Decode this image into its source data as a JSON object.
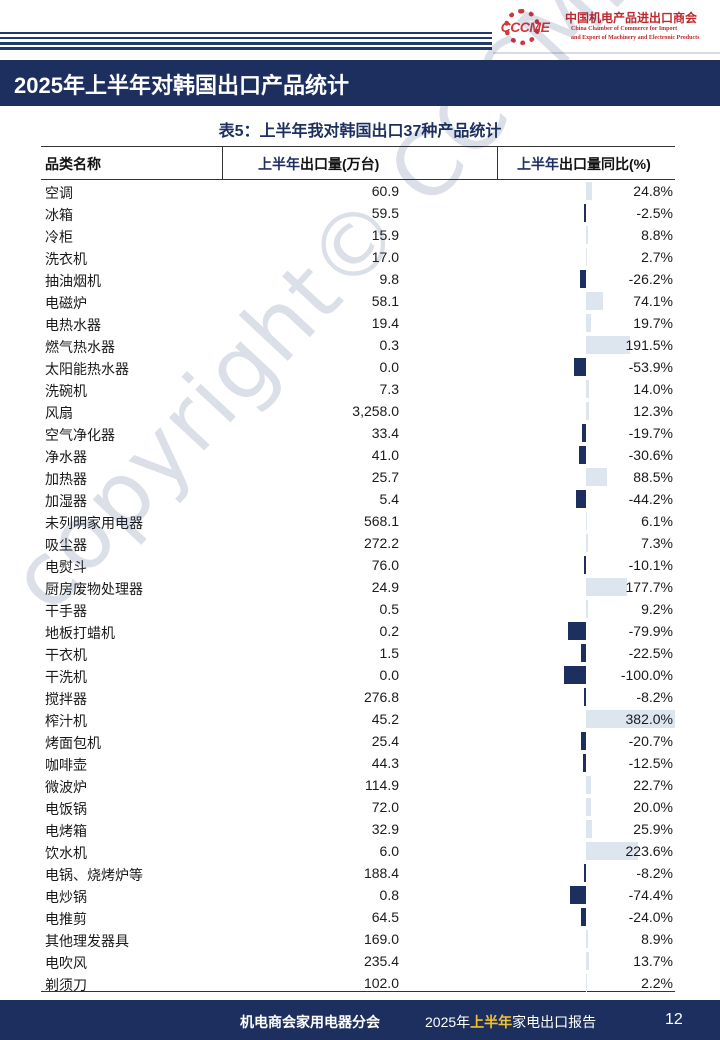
{
  "header": {
    "logo_mark": "CCCME",
    "org_cn": "中国机电产品进出口商会",
    "org_en_line1": "China Chamber of Commerce for Import",
    "org_en_line2": "and Export of Machinery and Electronic Products",
    "banner_title": "2025年上半年对韩国出口产品统计"
  },
  "table": {
    "title": "表5：上半年我对韩国出口37种产品统计",
    "col_name": "品类名称",
    "col_qty_highlight": "上半年",
    "col_qty_rest": "出口量(万台)",
    "col_yoy_highlight": "上半年",
    "col_yoy_rest": "出口量同比(%)",
    "colors": {
      "positive_bar": "#dde6ef",
      "negative_bar": "#1c2f5e"
    },
    "rows": [
      {
        "name": "空调",
        "qty": "60.9",
        "yoy": "24.8%",
        "yoy_value": 24.8
      },
      {
        "name": "冰箱",
        "qty": "59.5",
        "yoy": "-2.5%",
        "yoy_value": -2.5
      },
      {
        "name": "冷柜",
        "qty": "15.9",
        "yoy": "8.8%",
        "yoy_value": 8.8
      },
      {
        "name": "洗衣机",
        "qty": "17.0",
        "yoy": "2.7%",
        "yoy_value": 2.7
      },
      {
        "name": "抽油烟机",
        "qty": "9.8",
        "yoy": "-26.2%",
        "yoy_value": -26.2
      },
      {
        "name": "电磁炉",
        "qty": "58.1",
        "yoy": "74.1%",
        "yoy_value": 74.1
      },
      {
        "name": "电热水器",
        "qty": "19.4",
        "yoy": "19.7%",
        "yoy_value": 19.7
      },
      {
        "name": "燃气热水器",
        "qty": "0.3",
        "yoy": "191.5%",
        "yoy_value": 191.5
      },
      {
        "name": "太阳能热水器",
        "qty": "0.0",
        "yoy": "-53.9%",
        "yoy_value": -53.9
      },
      {
        "name": "洗碗机",
        "qty": "7.3",
        "yoy": "14.0%",
        "yoy_value": 14.0
      },
      {
        "name": "风扇",
        "qty": "3,258.0",
        "yoy": "12.3%",
        "yoy_value": 12.3
      },
      {
        "name": "空气净化器",
        "qty": "33.4",
        "yoy": "-19.7%",
        "yoy_value": -19.7
      },
      {
        "name": "净水器",
        "qty": "41.0",
        "yoy": "-30.6%",
        "yoy_value": -30.6
      },
      {
        "name": "加热器",
        "qty": "25.7",
        "yoy": "88.5%",
        "yoy_value": 88.5
      },
      {
        "name": "加湿器",
        "qty": "5.4",
        "yoy": "-44.2%",
        "yoy_value": -44.2
      },
      {
        "name": "未列明家用电器",
        "qty": "568.1",
        "yoy": "6.1%",
        "yoy_value": 6.1
      },
      {
        "name": "吸尘器",
        "qty": "272.2",
        "yoy": "7.3%",
        "yoy_value": 7.3
      },
      {
        "name": "电熨斗",
        "qty": "76.0",
        "yoy": "-10.1%",
        "yoy_value": -10.1
      },
      {
        "name": "厨房废物处理器",
        "qty": "24.9",
        "yoy": "177.7%",
        "yoy_value": 177.7
      },
      {
        "name": "干手器",
        "qty": "0.5",
        "yoy": "9.2%",
        "yoy_value": 9.2
      },
      {
        "name": "地板打蜡机",
        "qty": "0.2",
        "yoy": "-79.9%",
        "yoy_value": -79.9
      },
      {
        "name": "干衣机",
        "qty": "1.5",
        "yoy": "-22.5%",
        "yoy_value": -22.5
      },
      {
        "name": "干洗机",
        "qty": "0.0",
        "yoy": "-100.0%",
        "yoy_value": -100.0
      },
      {
        "name": "搅拌器",
        "qty": "276.8",
        "yoy": "-8.2%",
        "yoy_value": -8.2
      },
      {
        "name": "榨汁机",
        "qty": "45.2",
        "yoy": "382.0%",
        "yoy_value": 382.0
      },
      {
        "name": "烤面包机",
        "qty": "25.4",
        "yoy": "-20.7%",
        "yoy_value": -20.7
      },
      {
        "name": "咖啡壶",
        "qty": "44.3",
        "yoy": "-12.5%",
        "yoy_value": -12.5
      },
      {
        "name": "微波炉",
        "qty": "114.9",
        "yoy": "22.7%",
        "yoy_value": 22.7
      },
      {
        "name": "电饭锅",
        "qty": "72.0",
        "yoy": "20.0%",
        "yoy_value": 20.0
      },
      {
        "name": "电烤箱",
        "qty": "32.9",
        "yoy": "25.9%",
        "yoy_value": 25.9
      },
      {
        "name": "饮水机",
        "qty": "6.0",
        "yoy": "223.6%",
        "yoy_value": 223.6
      },
      {
        "name": "电锅、烧烤炉等",
        "qty": "188.4",
        "yoy": "-8.2%",
        "yoy_value": -8.2
      },
      {
        "name": "电炒锅",
        "qty": "0.8",
        "yoy": "-74.4%",
        "yoy_value": -74.4
      },
      {
        "name": "电推剪",
        "qty": "64.5",
        "yoy": "-24.0%",
        "yoy_value": -24.0
      },
      {
        "name": "其他理发器具",
        "qty": "169.0",
        "yoy": "8.9%",
        "yoy_value": 8.9
      },
      {
        "name": "电吹风",
        "qty": "235.4",
        "yoy": "13.7%",
        "yoy_value": 13.7
      },
      {
        "name": "剃须刀",
        "qty": "102.0",
        "yoy": "2.2%",
        "yoy_value": 2.2
      }
    ]
  },
  "watermark": "copyright© CCCME",
  "footer": {
    "org": "机电商会家用电器分会",
    "report_year": "2025年",
    "report_highlight": "上半年",
    "report_rest": "家电出口报告",
    "page": "12"
  }
}
